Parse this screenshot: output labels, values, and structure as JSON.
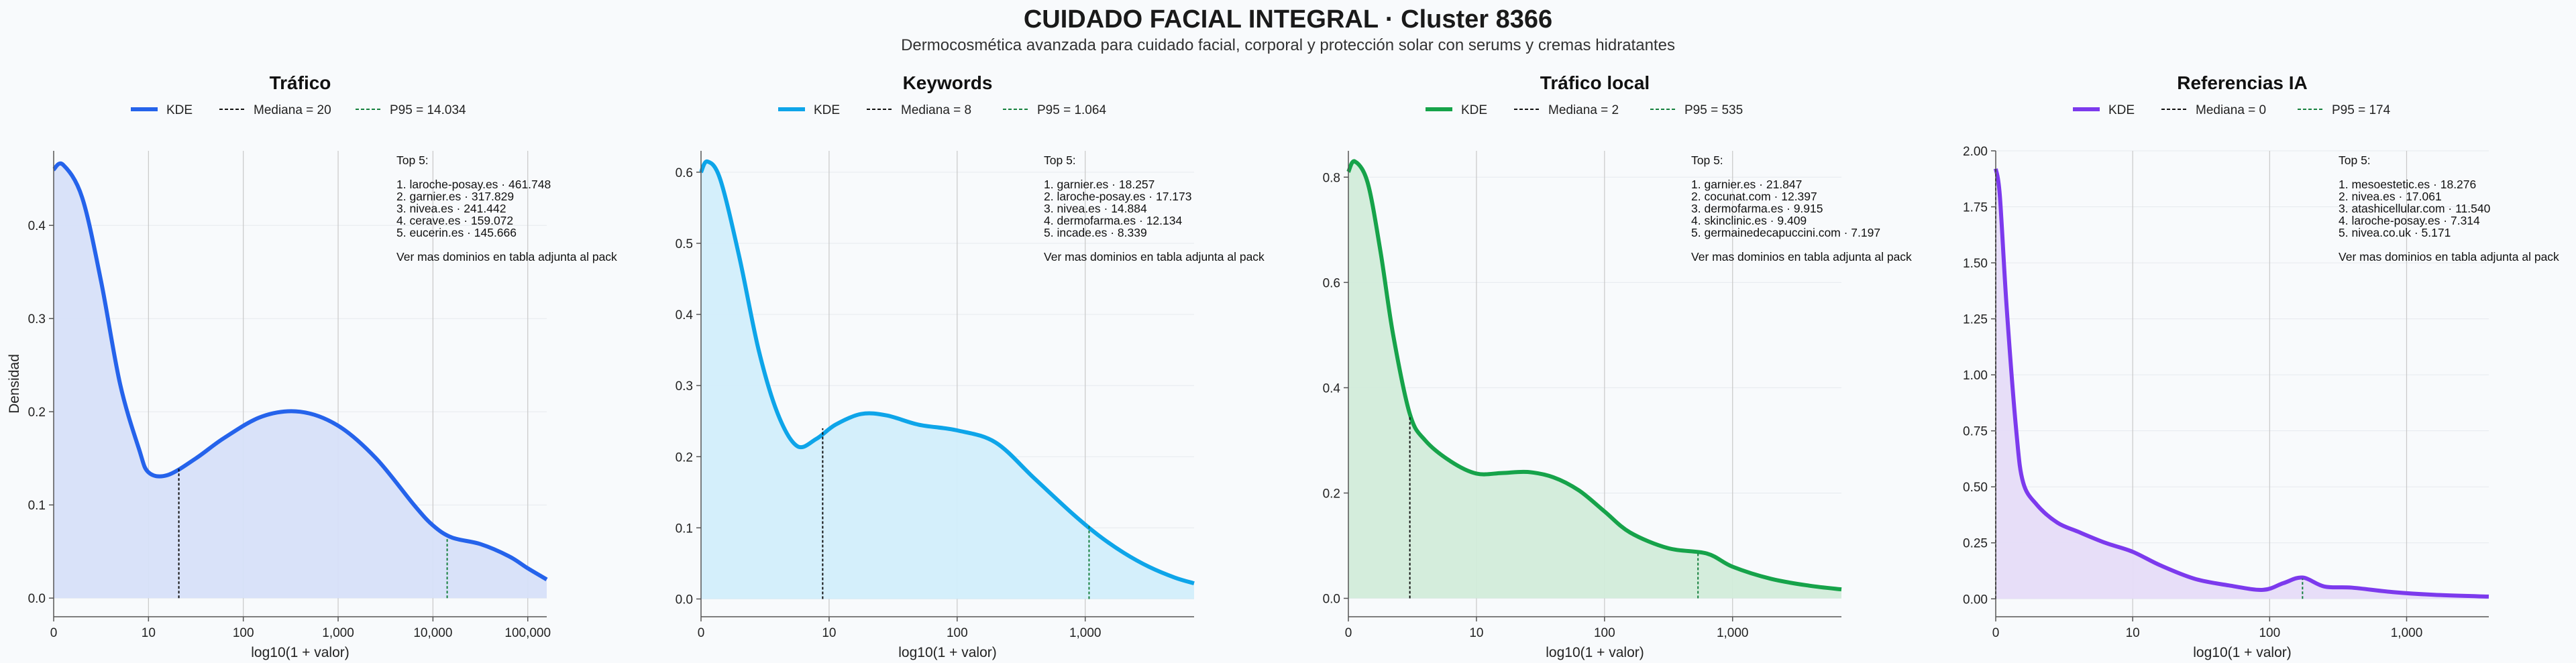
{
  "header": {
    "title": "CUIDADO FACIAL INTEGRAL · Cluster 8366",
    "subtitle": "Dermocosmética avanzada para cuidado facial, corporal y protección solar con serums y cremas hidratantes"
  },
  "chart_data": [
    {
      "type": "area",
      "title": "Tráfico",
      "color": "#2563eb",
      "fill": "#d7e0f9",
      "xlabel": "log10(1 + valor)",
      "ylabel": "Densidad",
      "x_scale": "log10(1+x)",
      "xlim": [
        0,
        5.2
      ],
      "ylim": [
        -0.02,
        0.48
      ],
      "xticks": [
        {
          "v": 0,
          "label": "0"
        },
        {
          "v": 1,
          "label": "10"
        },
        {
          "v": 2,
          "label": "100"
        },
        {
          "v": 3,
          "label": "1,000"
        },
        {
          "v": 4,
          "label": "10,000"
        },
        {
          "v": 5,
          "label": "100,000"
        }
      ],
      "yticks": [
        {
          "v": 0,
          "label": "0.0"
        },
        {
          "v": 0.1,
          "label": "0.1"
        },
        {
          "v": 0.2,
          "label": "0.2"
        },
        {
          "v": 0.3,
          "label": "0.3"
        },
        {
          "v": 0.4,
          "label": "0.4"
        }
      ],
      "legend": {
        "kde": "KDE",
        "median": "Mediana = 20",
        "p95": "P95 = 14.034"
      },
      "median_x": 1.32,
      "median_y": 0.14,
      "p95_x": 4.15,
      "p95_y": 0.065,
      "kde_x": [
        0,
        0.1,
        0.3,
        0.5,
        0.7,
        0.9,
        1.0,
        1.2,
        1.5,
        1.8,
        2.2,
        2.6,
        3.0,
        3.4,
        3.8,
        4.0,
        4.2,
        4.5,
        4.8,
        5.0,
        5.2
      ],
      "kde_y": [
        0.46,
        0.465,
        0.43,
        0.34,
        0.23,
        0.16,
        0.135,
        0.132,
        0.15,
        0.172,
        0.195,
        0.2,
        0.185,
        0.15,
        0.1,
        0.078,
        0.065,
        0.058,
        0.045,
        0.032,
        0.02
      ],
      "top5_lines": [
        "Top 5:",
        "",
        "1. laroche-posay.es · 461.748",
        "2. garnier.es · 317.829",
        "3. nivea.es · 241.442",
        "4. cerave.es · 159.072",
        "5. eucerin.es · 145.666",
        "",
        "Ver mas dominios en tabla adjunta al pack"
      ]
    },
    {
      "type": "area",
      "title": "Keywords",
      "color": "#0ea5e9",
      "fill": "#d2eefb",
      "xlabel": "log10(1 + valor)",
      "ylabel": "",
      "x_scale": "log10(1+x)",
      "xlim": [
        0,
        3.85
      ],
      "ylim": [
        -0.025,
        0.63
      ],
      "xticks": [
        {
          "v": 0,
          "label": "0"
        },
        {
          "v": 1,
          "label": "10"
        },
        {
          "v": 2,
          "label": "100"
        },
        {
          "v": 3,
          "label": "1,000"
        }
      ],
      "yticks": [
        {
          "v": 0,
          "label": "0.0"
        },
        {
          "v": 0.1,
          "label": "0.1"
        },
        {
          "v": 0.2,
          "label": "0.2"
        },
        {
          "v": 0.3,
          "label": "0.3"
        },
        {
          "v": 0.4,
          "label": "0.4"
        },
        {
          "v": 0.5,
          "label": "0.5"
        },
        {
          "v": 0.6,
          "label": "0.6"
        }
      ],
      "legend": {
        "kde": "KDE",
        "median": "Mediana = 8",
        "p95": "P95 = 1.064"
      },
      "median_x": 0.95,
      "median_y": 0.24,
      "p95_x": 3.03,
      "p95_y": 0.105,
      "kde_x": [
        0,
        0.05,
        0.15,
        0.3,
        0.45,
        0.6,
        0.75,
        0.9,
        1.05,
        1.25,
        1.45,
        1.7,
        2.0,
        2.3,
        2.6,
        2.9,
        3.1,
        3.3,
        3.5,
        3.7,
        3.85
      ],
      "kde_y": [
        0.6,
        0.615,
        0.59,
        0.48,
        0.35,
        0.26,
        0.215,
        0.225,
        0.245,
        0.26,
        0.258,
        0.245,
        0.237,
        0.22,
        0.17,
        0.12,
        0.09,
        0.065,
        0.045,
        0.03,
        0.022
      ],
      "top5_lines": [
        "Top 5:",
        "",
        "1. garnier.es · 18.257",
        "2. laroche-posay.es · 17.173",
        "3. nivea.es · 14.884",
        "4. dermofarma.es · 12.134",
        "5. incade.es · 8.339",
        "",
        "Ver mas dominios en tabla adjunta al pack"
      ]
    },
    {
      "type": "area",
      "title": "Tráfico local",
      "color": "#16a34a",
      "fill": "#d2ecda",
      "xlabel": "log10(1 + valor)",
      "ylabel": "",
      "x_scale": "log10(1+x)",
      "xlim": [
        0,
        3.85
      ],
      "ylim": [
        -0.035,
        0.85
      ],
      "xticks": [
        {
          "v": 0,
          "label": "0"
        },
        {
          "v": 1,
          "label": "10"
        },
        {
          "v": 2,
          "label": "100"
        },
        {
          "v": 3,
          "label": "1,000"
        }
      ],
      "yticks": [
        {
          "v": 0,
          "label": "0.0"
        },
        {
          "v": 0.2,
          "label": "0.2"
        },
        {
          "v": 0.4,
          "label": "0.4"
        },
        {
          "v": 0.6,
          "label": "0.6"
        },
        {
          "v": 0.8,
          "label": "0.8"
        }
      ],
      "legend": {
        "kde": "KDE",
        "median": "Mediana = 2",
        "p95": "P95 = 535"
      },
      "median_x": 0.48,
      "median_y": 0.345,
      "p95_x": 2.73,
      "p95_y": 0.088,
      "kde_x": [
        0,
        0.05,
        0.15,
        0.25,
        0.35,
        0.48,
        0.6,
        0.8,
        1.0,
        1.2,
        1.4,
        1.6,
        1.8,
        2.0,
        2.2,
        2.5,
        2.8,
        3.0,
        3.3,
        3.6,
        3.85
      ],
      "kde_y": [
        0.81,
        0.83,
        0.79,
        0.66,
        0.5,
        0.35,
        0.3,
        0.26,
        0.237,
        0.238,
        0.24,
        0.23,
        0.205,
        0.165,
        0.125,
        0.095,
        0.085,
        0.06,
        0.037,
        0.024,
        0.017
      ],
      "top5_lines": [
        "Top 5:",
        "",
        "1. garnier.es · 21.847",
        "2. cocunat.com · 12.397",
        "3. dermofarma.es · 9.915",
        "4. skinclinic.es · 9.409",
        "5. germainedecapuccini.com · 7.197",
        "",
        "Ver mas dominios en tabla adjunta al pack"
      ]
    },
    {
      "type": "area",
      "title": "Referencias IA",
      "color": "#7c3aed",
      "fill": "#e6dcf8",
      "xlabel": "log10(1 + valor)",
      "ylabel": "",
      "x_scale": "log10(1+x)",
      "xlim": [
        0,
        3.6
      ],
      "ylim": [
        -0.08,
        2.0
      ],
      "xticks": [
        {
          "v": 0,
          "label": "0"
        },
        {
          "v": 1,
          "label": "10"
        },
        {
          "v": 2,
          "label": "100"
        },
        {
          "v": 3,
          "label": "1,000"
        }
      ],
      "yticks": [
        {
          "v": 0,
          "label": "0.00"
        },
        {
          "v": 0.25,
          "label": "0.25"
        },
        {
          "v": 0.5,
          "label": "0.50"
        },
        {
          "v": 0.75,
          "label": "0.75"
        },
        {
          "v": 1.0,
          "label": "1.00"
        },
        {
          "v": 1.25,
          "label": "1.25"
        },
        {
          "v": 1.5,
          "label": "1.50"
        },
        {
          "v": 1.75,
          "label": "1.75"
        },
        {
          "v": 2.0,
          "label": "2.00"
        }
      ],
      "legend": {
        "kde": "KDE",
        "median": "Mediana = 0",
        "p95": "P95 = 174"
      },
      "median_x": 0,
      "median_y": 1.92,
      "p95_x": 2.24,
      "p95_y": 0.09,
      "kde_x": [
        0,
        0.03,
        0.08,
        0.15,
        0.2,
        0.3,
        0.45,
        0.6,
        0.8,
        1.0,
        1.2,
        1.45,
        1.7,
        1.95,
        2.1,
        2.24,
        2.4,
        2.6,
        2.9,
        3.2,
        3.6
      ],
      "kde_y": [
        1.92,
        1.8,
        1.3,
        0.75,
        0.52,
        0.42,
        0.34,
        0.3,
        0.25,
        0.21,
        0.15,
        0.09,
        0.06,
        0.04,
        0.07,
        0.095,
        0.055,
        0.05,
        0.03,
        0.018,
        0.01
      ],
      "top5_lines": [
        "Top 5:",
        "",
        "1. mesoestetic.es · 18.276",
        "2. nivea.es · 17.061",
        "3. atashicellular.com · 11.540",
        "4. laroche-posay.es · 7.314",
        "5. nivea.co.uk · 5.171",
        "",
        "Ver mas dominios en tabla adjunta al pack"
      ]
    }
  ]
}
